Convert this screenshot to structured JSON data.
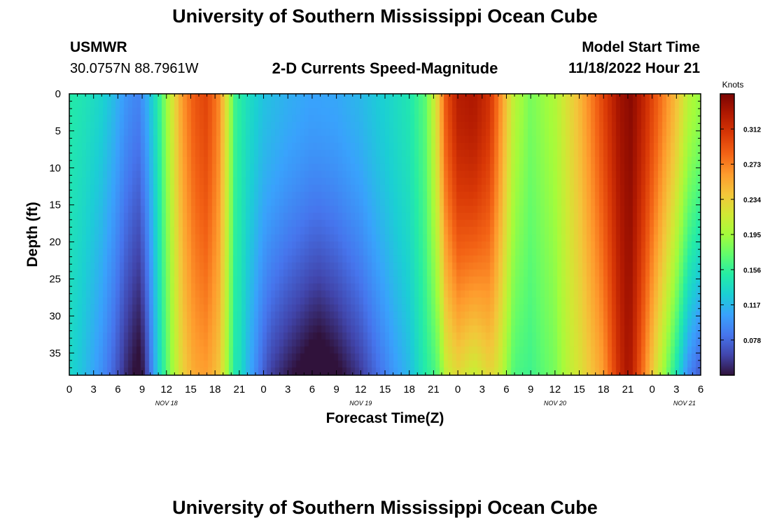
{
  "header": {
    "title": "University of Southern Mississippi Ocean Cube",
    "station": "USMWR",
    "coords": "30.0757N  88.7961W",
    "subtitle": "2-D Currents Speed-Magnitude",
    "model_label": "Model Start Time",
    "model_time": "11/18/2022 Hour 21"
  },
  "footer": {
    "title": "University of Southern Mississippi Ocean Cube"
  },
  "chart_data": {
    "type": "heatmap",
    "title": "2-D Currents Speed-Magnitude",
    "xlabel": "Forecast Time(Z)",
    "ylabel": "Depth (ft)",
    "x_range_hours": [
      0,
      78
    ],
    "x_ticks": [
      {
        "h": 0,
        "label": "0"
      },
      {
        "h": 3,
        "label": "3"
      },
      {
        "h": 6,
        "label": "6"
      },
      {
        "h": 9,
        "label": "9"
      },
      {
        "h": 12,
        "label": "12"
      },
      {
        "h": 15,
        "label": "15"
      },
      {
        "h": 18,
        "label": "18"
      },
      {
        "h": 21,
        "label": "21"
      },
      {
        "h": 24,
        "label": "0"
      },
      {
        "h": 27,
        "label": "3"
      },
      {
        "h": 30,
        "label": "6"
      },
      {
        "h": 33,
        "label": "9"
      },
      {
        "h": 36,
        "label": "12"
      },
      {
        "h": 39,
        "label": "15"
      },
      {
        "h": 42,
        "label": "18"
      },
      {
        "h": 45,
        "label": "21"
      },
      {
        "h": 48,
        "label": "0"
      },
      {
        "h": 51,
        "label": "3"
      },
      {
        "h": 54,
        "label": "6"
      },
      {
        "h": 57,
        "label": "9"
      },
      {
        "h": 60,
        "label": "12"
      },
      {
        "h": 63,
        "label": "15"
      },
      {
        "h": 66,
        "label": "18"
      },
      {
        "h": 69,
        "label": "21"
      },
      {
        "h": 72,
        "label": "0"
      },
      {
        "h": 75,
        "label": "3"
      },
      {
        "h": 78,
        "label": "6"
      }
    ],
    "date_labels": [
      {
        "h": 12,
        "label": "NOV 18"
      },
      {
        "h": 36,
        "label": "NOV 19"
      },
      {
        "h": 60,
        "label": "NOV 20"
      },
      {
        "h": 76,
        "label": "NOV 21"
      }
    ],
    "y_range": [
      0,
      38
    ],
    "y_inverted": true,
    "y_ticks": [
      0,
      5,
      10,
      15,
      20,
      25,
      30,
      35
    ],
    "colorbar": {
      "unit": "Knots",
      "range": [
        0.039,
        0.351
      ],
      "ticks": [
        {
          "v": 0.078,
          "label": "0.078"
        },
        {
          "v": 0.117,
          "label": "0.117"
        },
        {
          "v": 0.156,
          "label": "0.156"
        },
        {
          "v": 0.195,
          "label": "0.195"
        },
        {
          "v": 0.234,
          "label": "0.234"
        },
        {
          "v": 0.273,
          "label": "0.273"
        },
        {
          "v": 0.312,
          "label": "0.312"
        }
      ],
      "colormap": [
        "#30123b",
        "#4145ab",
        "#4675ed",
        "#39a2fc",
        "#1bcfd4",
        "#24eca6",
        "#61fc6c",
        "#a4fc3b",
        "#d1e834",
        "#f3c63a",
        "#fe9b2d",
        "#f36315",
        "#d93806",
        "#b11901",
        "#7a0402"
      ]
    },
    "speed_profile": [
      {
        "h": 0,
        "s": 0.15
      },
      {
        "h": 2,
        "s": 0.143
      },
      {
        "h": 4,
        "s": 0.132
      },
      {
        "h": 5.5,
        "s": 0.118
      },
      {
        "h": 7,
        "s": 0.1
      },
      {
        "h": 8.5,
        "s": 0.09
      },
      {
        "h": 9.5,
        "s": 0.108
      },
      {
        "h": 11,
        "s": 0.15
      },
      {
        "h": 12.5,
        "s": 0.21
      },
      {
        "h": 14,
        "s": 0.262
      },
      {
        "h": 15.5,
        "s": 0.29
      },
      {
        "h": 17,
        "s": 0.3
      },
      {
        "h": 18.5,
        "s": 0.27
      },
      {
        "h": 19.5,
        "s": 0.22
      },
      {
        "h": 20.5,
        "s": 0.16
      },
      {
        "h": 22,
        "s": 0.14
      },
      {
        "h": 24,
        "s": 0.122
      },
      {
        "h": 27,
        "s": 0.112
      },
      {
        "h": 30,
        "s": 0.106
      },
      {
        "h": 33,
        "s": 0.108
      },
      {
        "h": 36,
        "s": 0.116
      },
      {
        "h": 39,
        "s": 0.13
      },
      {
        "h": 42,
        "s": 0.145
      },
      {
        "h": 44,
        "s": 0.17
      },
      {
        "h": 45.3,
        "s": 0.22
      },
      {
        "h": 46.5,
        "s": 0.29
      },
      {
        "h": 48,
        "s": 0.325
      },
      {
        "h": 50,
        "s": 0.33
      },
      {
        "h": 52,
        "s": 0.31
      },
      {
        "h": 53.5,
        "s": 0.26
      },
      {
        "h": 55,
        "s": 0.205
      },
      {
        "h": 57,
        "s": 0.18
      },
      {
        "h": 60,
        "s": 0.2
      },
      {
        "h": 63,
        "s": 0.245
      },
      {
        "h": 66,
        "s": 0.3
      },
      {
        "h": 68,
        "s": 0.335
      },
      {
        "h": 69.5,
        "s": 0.345
      },
      {
        "h": 71,
        "s": 0.32
      },
      {
        "h": 73,
        "s": 0.282
      },
      {
        "h": 75,
        "s": 0.245
      },
      {
        "h": 76.5,
        "s": 0.205
      },
      {
        "h": 78,
        "s": 0.19
      }
    ],
    "depth_profile": [
      {
        "h": 0,
        "b": -0.015,
        "e": 1.0
      },
      {
        "h": 7,
        "b": -0.05,
        "e": 1.2
      },
      {
        "h": 9,
        "b": -0.06,
        "e": 1.2
      },
      {
        "h": 11,
        "b": -0.02,
        "e": 1.0
      },
      {
        "h": 17,
        "b": -0.04,
        "e": 1.5
      },
      {
        "h": 20,
        "b": -0.02,
        "e": 1.5
      },
      {
        "h": 21,
        "b": -0.01,
        "e": 1.2
      },
      {
        "h": 25,
        "b": -0.06,
        "e": 1.5
      },
      {
        "h": 31,
        "b": -0.085,
        "e": 1.5
      },
      {
        "h": 36,
        "b": -0.06,
        "e": 1.5
      },
      {
        "h": 40,
        "b": -0.035,
        "e": 1.6
      },
      {
        "h": 44,
        "b": -0.02,
        "e": 1.5
      },
      {
        "h": 46,
        "b": -0.075,
        "e": 1.5
      },
      {
        "h": 50,
        "b": -0.12,
        "e": 1.6
      },
      {
        "h": 53,
        "b": -0.06,
        "e": 1.5
      },
      {
        "h": 57,
        "b": -0.02,
        "e": 1.2
      },
      {
        "h": 62,
        "b": -0.02,
        "e": 1.2
      },
      {
        "h": 66,
        "b": -0.04,
        "e": 1.3
      },
      {
        "h": 69,
        "b": -0.01,
        "e": 1.2
      },
      {
        "h": 72,
        "b": -0.06,
        "e": 1.4
      },
      {
        "h": 75,
        "b": -0.1,
        "e": 1.4
      },
      {
        "h": 78,
        "b": -0.12,
        "e": 1.4
      }
    ]
  }
}
